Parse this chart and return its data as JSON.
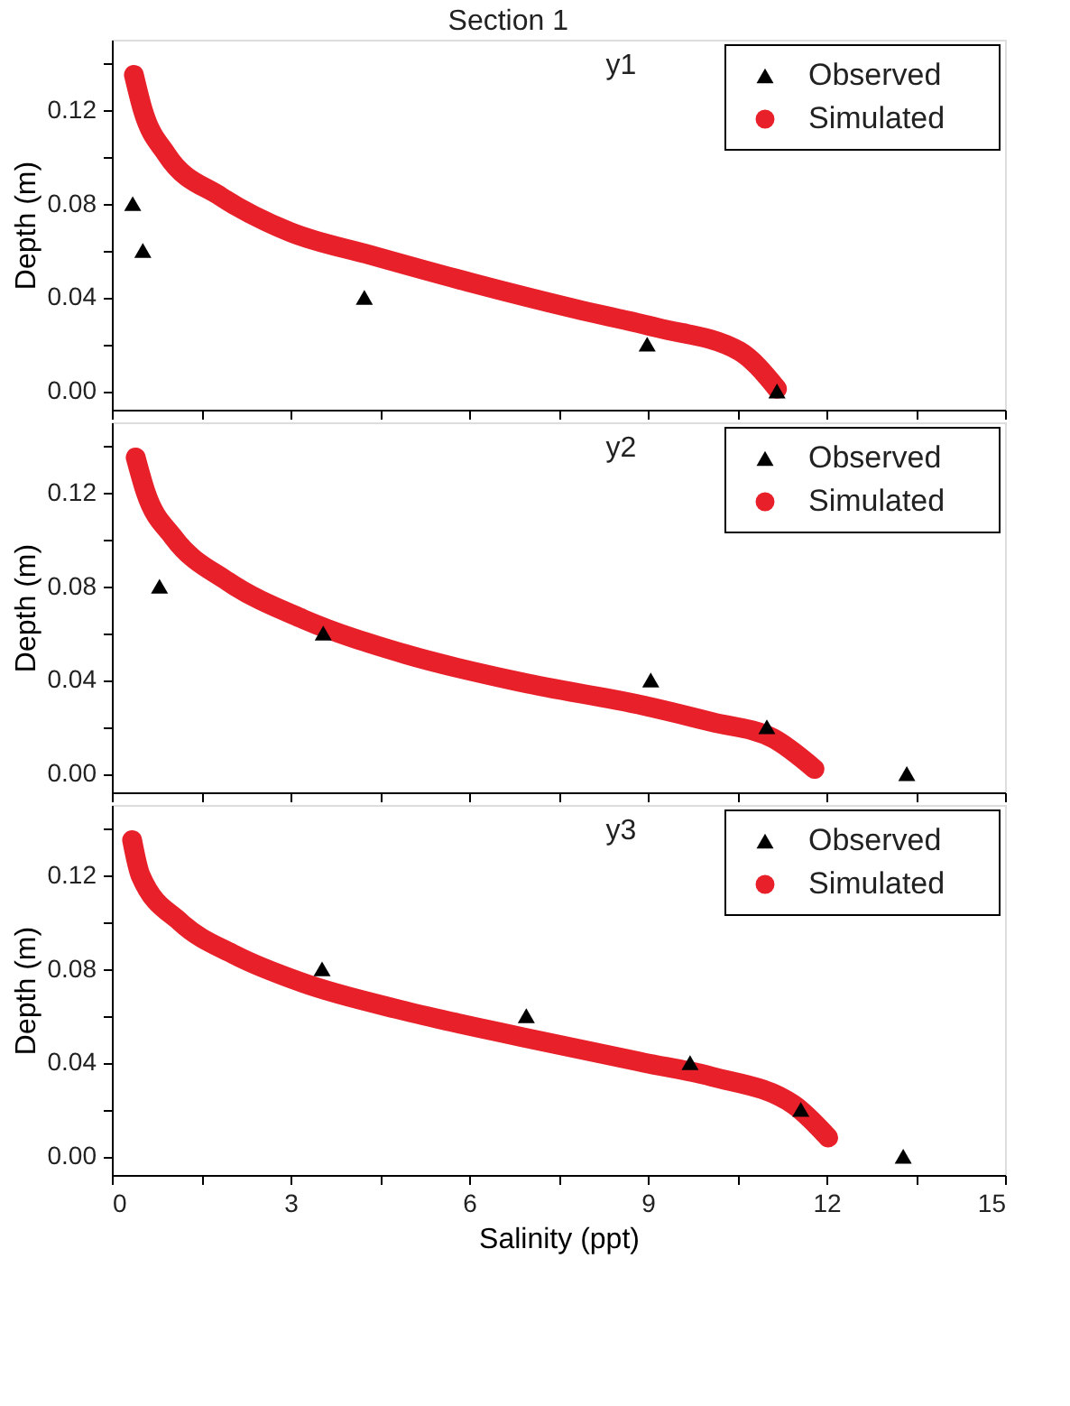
{
  "chart_data": [
    {
      "type": "scatter",
      "title": "Section 1",
      "ylabel": "Depth (m)",
      "annotations": [
        "y1"
      ],
      "legend": "top right",
      "grid": false,
      "tick_labels": "y",
      "line_style": "solid",
      "xlim": [
        0,
        15
      ],
      "xticks": [
        0,
        {
          "value": 1.5,
          "label": null
        },
        3,
        {
          "value": 4.5,
          "label": null
        },
        6,
        {
          "value": 7.5,
          "label": null
        },
        9,
        {
          "value": 10.5,
          "label": null
        },
        12,
        {
          "value": 13.5,
          "label": null
        },
        15
      ],
      "ylim": [
        -0.008,
        0.15
      ],
      "yticks": [
        {
          "value": 0,
          "label": "0.00"
        },
        {
          "value": 0.02,
          "label": null
        },
        {
          "value": 0.04,
          "label": "0.04"
        },
        {
          "value": 0.06,
          "label": null
        },
        {
          "value": 0.08,
          "label": "0.08"
        },
        {
          "value": 0.1,
          "label": null
        },
        {
          "value": 0.12,
          "label": "0.12"
        },
        {
          "value": 0.14,
          "label": null
        }
      ],
      "series": [
        {
          "name": "Observed",
          "marker": "triangle",
          "color": "#000000",
          "x": [
            0.35,
            0.52,
            4.24,
            8.99,
            11.17
          ],
          "values": [
            0.08,
            0.06,
            0.04,
            0.02,
            0.0
          ]
        },
        {
          "name": "Simulated",
          "type": "line",
          "color": "#e8202a",
          "x": [
            0.37,
            0.52,
            0.92,
            1.83,
            2.98,
            4.35,
            6.07,
            7.79,
            9.16,
            10.54,
            11.17
          ],
          "values": [
            0.135,
            0.12,
            0.101,
            0.083,
            0.068,
            0.058,
            0.046,
            0.035,
            0.027,
            0.017,
            0.001
          ]
        }
      ]
    },
    {
      "type": "scatter",
      "ylabel": "Depth (m)",
      "annotations": [
        "y2"
      ],
      "legend": "top right",
      "grid": false,
      "tick_labels": "y",
      "line_style": "solid",
      "xlim": [
        0,
        15
      ],
      "xticks": [
        0,
        {
          "value": 1.5,
          "label": null
        },
        3,
        {
          "value": 4.5,
          "label": null
        },
        6,
        {
          "value": 7.5,
          "label": null
        },
        9,
        {
          "value": 10.5,
          "label": null
        },
        12,
        {
          "value": 13.5,
          "label": null
        },
        15
      ],
      "ylim": [
        -0.008,
        0.15
      ],
      "yticks": [
        {
          "value": 0,
          "label": "0.00"
        },
        {
          "value": 0.02,
          "label": null
        },
        {
          "value": 0.04,
          "label": "0.04"
        },
        {
          "value": 0.06,
          "label": null
        },
        {
          "value": 0.08,
          "label": "0.08"
        },
        {
          "value": 0.1,
          "label": null
        },
        {
          "value": 0.12,
          "label": "0.12"
        },
        {
          "value": 0.14,
          "label": null
        }
      ],
      "series": [
        {
          "name": "Observed",
          "marker": "triangle",
          "color": "#000000",
          "x": [
            0.8,
            3.55,
            9.05,
            11.0,
            13.35
          ],
          "values": [
            0.08,
            0.06,
            0.04,
            0.02,
            0.0
          ]
        },
        {
          "name": "Simulated",
          "type": "line",
          "color": "#e8202a",
          "x": [
            0.4,
            0.57,
            1.03,
            1.95,
            3.21,
            4.93,
            6.88,
            8.94,
            10.08,
            11.11,
            11.8
          ],
          "values": [
            0.135,
            0.12,
            0.101,
            0.082,
            0.066,
            0.051,
            0.039,
            0.029,
            0.022,
            0.015,
            0.002
          ]
        }
      ]
    },
    {
      "type": "scatter",
      "ylabel": "Depth (m)",
      "xlabel": "Salinity (ppt)",
      "annotations": [
        "y3"
      ],
      "legend": "top right",
      "grid": false,
      "line_style": "solid",
      "xlim": [
        0,
        15
      ],
      "xticks": [
        0,
        {
          "value": 1.5,
          "label": null
        },
        3,
        {
          "value": 4.5,
          "label": null
        },
        6,
        {
          "value": 7.5,
          "label": null
        },
        9,
        {
          "value": 10.5,
          "label": null
        },
        12,
        {
          "value": 13.5,
          "label": null
        },
        15
      ],
      "ylim": [
        -0.008,
        0.15
      ],
      "yticks": [
        {
          "value": 0,
          "label": "0.00"
        },
        {
          "value": 0.02,
          "label": null
        },
        {
          "value": 0.04,
          "label": "0.04"
        },
        {
          "value": 0.06,
          "label": null
        },
        {
          "value": 0.08,
          "label": "0.08"
        },
        {
          "value": 0.1,
          "label": null
        },
        {
          "value": 0.12,
          "label": "0.12"
        },
        {
          "value": 0.14,
          "label": null
        }
      ],
      "series": [
        {
          "name": "Observed",
          "marker": "triangle",
          "color": "#000000",
          "x": [
            3.53,
            6.96,
            9.71,
            11.57,
            13.29
          ],
          "values": [
            0.08,
            0.06,
            0.04,
            0.02,
            0.0
          ]
        },
        {
          "name": "Simulated",
          "type": "line",
          "color": "#e8202a",
          "x": [
            0.34,
            0.48,
            1.15,
            2.06,
            3.21,
            4.93,
            6.87,
            8.93,
            10.08,
            11.45,
            12.03
          ],
          "values": [
            0.135,
            0.12,
            0.1,
            0.086,
            0.074,
            0.062,
            0.051,
            0.04,
            0.034,
            0.022,
            0.008
          ]
        }
      ]
    }
  ]
}
